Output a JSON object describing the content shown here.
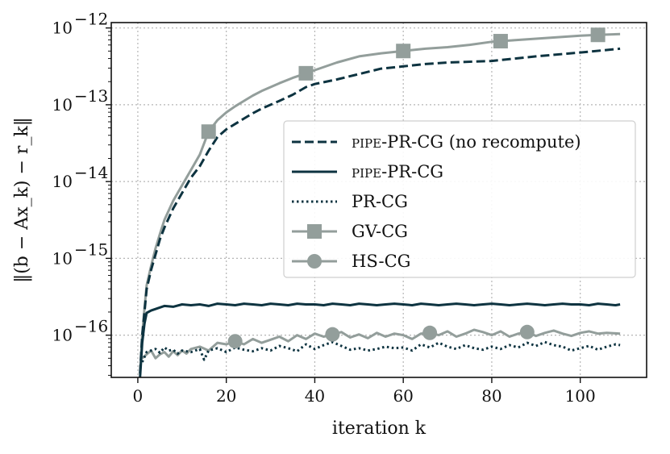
{
  "chart_data": {
    "type": "line",
    "title": "",
    "xlabel": "iteration k",
    "ylabel": "‖(b − Ax_k) − r_k‖",
    "xlim": [
      -6,
      115
    ],
    "ylim_log10": [
      -16.55,
      -11.93
    ],
    "yscale": "log",
    "grid": true,
    "legend_position": "center-right",
    "x_ticks": [
      0,
      20,
      40,
      60,
      80,
      100
    ],
    "x_tick_labels": [
      "0",
      "20",
      "40",
      "60",
      "80",
      "100"
    ],
    "y_ticks_log10": [
      -16,
      -15,
      -14,
      -13,
      -12
    ],
    "y_tick_base": "10",
    "y_tick_exponents": [
      "−16",
      "−15",
      "−14",
      "−13",
      "−12"
    ],
    "series": [
      {
        "name": "pipe-PR-CG (no recompute)",
        "legend_prefix": "pipe",
        "legend_suffix": "-PR-CG (no recompute)",
        "color": "#0d3340",
        "style": "dashed",
        "marker": "none",
        "x": [
          0.5,
          1,
          1.5,
          2,
          3,
          4,
          5,
          6,
          8,
          10,
          12,
          14,
          16,
          18,
          20,
          22,
          24,
          26,
          28,
          30,
          32,
          35,
          38,
          40,
          45,
          50,
          55,
          60,
          65,
          70,
          80,
          90,
          100,
          109
        ],
        "log10_values": [
          -16.5,
          -16.0,
          -15.7,
          -15.4,
          -15.15,
          -14.95,
          -14.75,
          -14.6,
          -14.35,
          -14.15,
          -13.95,
          -13.8,
          -13.6,
          -13.42,
          -13.32,
          -13.25,
          -13.18,
          -13.11,
          -13.05,
          -13.0,
          -12.95,
          -12.87,
          -12.77,
          -12.73,
          -12.67,
          -12.6,
          -12.53,
          -12.5,
          -12.47,
          -12.45,
          -12.43,
          -12.37,
          -12.32,
          -12.27
        ]
      },
      {
        "name": "pipe-PR-CG",
        "legend_prefix": "pipe",
        "legend_suffix": "-PR-CG",
        "color": "#0d3340",
        "style": "solid",
        "marker": "none",
        "x": [
          0.5,
          1,
          1.5,
          2,
          3,
          4,
          5,
          6,
          8,
          10,
          12,
          14,
          16,
          18,
          20,
          22,
          24,
          26,
          28,
          30,
          32,
          34,
          36,
          38,
          40,
          42,
          44,
          46,
          48,
          50,
          52,
          54,
          56,
          58,
          60,
          62,
          64,
          66,
          68,
          70,
          72,
          74,
          76,
          78,
          80,
          82,
          84,
          86,
          88,
          90,
          92,
          94,
          96,
          98,
          100,
          102,
          104,
          106,
          108,
          109
        ],
        "log10_values": [
          -16.55,
          -16.1,
          -15.85,
          -15.71,
          -15.68,
          -15.66,
          -15.64,
          -15.62,
          -15.63,
          -15.6,
          -15.61,
          -15.6,
          -15.62,
          -15.59,
          -15.6,
          -15.61,
          -15.59,
          -15.6,
          -15.61,
          -15.59,
          -15.6,
          -15.61,
          -15.59,
          -15.6,
          -15.6,
          -15.61,
          -15.59,
          -15.6,
          -15.61,
          -15.59,
          -15.6,
          -15.61,
          -15.6,
          -15.59,
          -15.6,
          -15.61,
          -15.59,
          -15.6,
          -15.61,
          -15.6,
          -15.59,
          -15.6,
          -15.61,
          -15.6,
          -15.59,
          -15.6,
          -15.61,
          -15.6,
          -15.59,
          -15.6,
          -15.61,
          -15.6,
          -15.59,
          -15.6,
          -15.6,
          -15.61,
          -15.59,
          -15.6,
          -15.61,
          -15.6
        ]
      },
      {
        "name": "PR-CG",
        "color": "#0d3340",
        "style": "dotted",
        "marker": "none",
        "x": [
          1,
          2,
          3,
          4,
          5,
          6,
          7,
          8,
          9,
          10,
          12,
          14,
          15,
          16,
          18,
          20,
          22,
          24,
          26,
          28,
          30,
          32,
          34,
          36,
          38,
          40,
          42,
          44,
          46,
          48,
          50,
          52,
          54,
          56,
          58,
          60,
          62,
          64,
          66,
          68,
          70,
          72,
          74,
          76,
          78,
          80,
          82,
          84,
          86,
          88,
          90,
          92,
          94,
          96,
          98,
          100,
          102,
          104,
          106,
          108,
          109
        ],
        "log10_values": [
          -16.35,
          -16.22,
          -16.2,
          -16.18,
          -16.23,
          -16.16,
          -16.2,
          -16.19,
          -16.24,
          -16.2,
          -16.22,
          -16.18,
          -16.32,
          -16.2,
          -16.17,
          -16.22,
          -16.16,
          -16.19,
          -16.21,
          -16.17,
          -16.2,
          -16.14,
          -16.17,
          -16.21,
          -16.12,
          -16.18,
          -16.13,
          -16.09,
          -16.14,
          -16.19,
          -16.17,
          -16.2,
          -16.18,
          -16.15,
          -16.17,
          -16.16,
          -16.2,
          -16.12,
          -16.16,
          -16.1,
          -16.15,
          -16.18,
          -16.13,
          -16.17,
          -16.19,
          -16.15,
          -16.18,
          -16.13,
          -16.16,
          -16.1,
          -16.14,
          -16.09,
          -16.13,
          -16.15,
          -16.2,
          -16.17,
          -16.14,
          -16.19,
          -16.15,
          -16.12,
          -16.13
        ]
      },
      {
        "name": "GV-CG",
        "color": "#939e9b",
        "style": "solid",
        "marker": "square",
        "marker_x": [
          16,
          38,
          60,
          82,
          104
        ],
        "x": [
          0.5,
          1,
          1.5,
          2,
          3,
          4,
          5,
          6,
          8,
          10,
          12,
          14,
          16,
          18,
          20,
          22,
          24,
          26,
          28,
          30,
          32,
          35,
          38,
          40,
          45,
          50,
          55,
          60,
          65,
          70,
          75,
          80,
          85,
          90,
          95,
          100,
          104,
          109
        ],
        "log10_values": [
          -16.5,
          -16.0,
          -15.65,
          -15.35,
          -15.1,
          -14.87,
          -14.68,
          -14.5,
          -14.25,
          -14.05,
          -13.85,
          -13.65,
          -13.35,
          -13.2,
          -13.1,
          -13.02,
          -12.95,
          -12.88,
          -12.82,
          -12.77,
          -12.72,
          -12.65,
          -12.59,
          -12.55,
          -12.45,
          -12.37,
          -12.33,
          -12.3,
          -12.27,
          -12.25,
          -12.22,
          -12.18,
          -12.16,
          -12.14,
          -12.12,
          -12.1,
          -12.09,
          -12.08
        ]
      },
      {
        "name": "HS-CG",
        "color": "#939e9b",
        "style": "solid",
        "marker": "circle",
        "marker_x": [
          22,
          44,
          66,
          88
        ],
        "x": [
          1,
          2,
          3,
          4,
          5,
          6,
          7,
          8,
          9,
          10,
          11,
          12,
          14,
          16,
          18,
          20,
          22,
          24,
          26,
          28,
          30,
          32,
          34,
          36,
          38,
          40,
          42,
          44,
          46,
          48,
          50,
          52,
          54,
          56,
          58,
          60,
          62,
          64,
          66,
          68,
          70,
          72,
          74,
          76,
          78,
          80,
          82,
          84,
          86,
          88,
          90,
          92,
          94,
          96,
          98,
          100,
          102,
          104,
          106,
          109
        ],
        "log10_values": [
          -16.3,
          -16.25,
          -16.2,
          -16.3,
          -16.25,
          -16.22,
          -16.28,
          -16.21,
          -16.26,
          -16.2,
          -16.24,
          -16.18,
          -16.15,
          -16.2,
          -16.1,
          -16.12,
          -16.08,
          -16.12,
          -16.05,
          -16.1,
          -16.06,
          -16.02,
          -16.08,
          -16.0,
          -16.05,
          -15.98,
          -16.02,
          -15.99,
          -15.96,
          -16.03,
          -15.99,
          -16.04,
          -15.97,
          -16.02,
          -15.98,
          -16.0,
          -16.05,
          -15.98,
          -15.97,
          -16.0,
          -15.95,
          -16.02,
          -15.98,
          -15.93,
          -15.96,
          -16.0,
          -15.95,
          -16.02,
          -15.98,
          -15.96,
          -16.01,
          -15.97,
          -15.94,
          -15.98,
          -16.01,
          -15.97,
          -15.95,
          -15.98,
          -15.97,
          -15.98
        ]
      }
    ]
  }
}
